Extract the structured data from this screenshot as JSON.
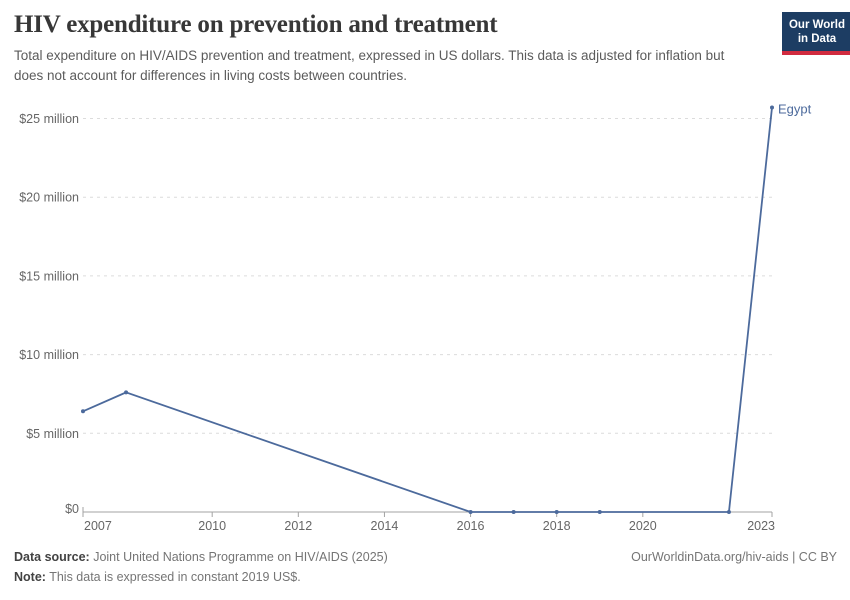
{
  "header": {
    "title": "HIV expenditure on prevention and treatment",
    "subtitle": "Total expenditure on HIV/AIDS prevention and treatment, expressed in US dollars. This data is adjusted for inflation but does not account for differences in living costs between countries.",
    "logo": {
      "line1": "Our World",
      "line2": "in Data",
      "bg_color": "#1d3d63",
      "bar_color": "#d12b3f"
    }
  },
  "chart_data": {
    "type": "line",
    "title": "HIV expenditure on prevention and treatment",
    "y_unit": "million US$ (constant 2019 US$)",
    "xlim": [
      2007,
      2023
    ],
    "ylim": [
      0,
      25
    ],
    "grid": true,
    "x_ticks": [
      2007,
      2010,
      2012,
      2014,
      2016,
      2018,
      2020,
      2023
    ],
    "y_ticks": [
      {
        "value": 0,
        "label": "$0"
      },
      {
        "value": 5,
        "label": "$5 million"
      },
      {
        "value": 10,
        "label": "$10 million"
      },
      {
        "value": 15,
        "label": "$15 million"
      },
      {
        "value": 20,
        "label": "$20 million"
      },
      {
        "value": 25,
        "label": "$25 million"
      }
    ],
    "series": [
      {
        "name": "Egypt",
        "color": "#4c6a9c",
        "points": [
          [
            2007,
            6.4
          ],
          [
            2008,
            7.6
          ],
          [
            2016,
            0
          ],
          [
            2017,
            0
          ],
          [
            2018,
            0
          ],
          [
            2019,
            0
          ],
          [
            2022,
            0
          ],
          [
            2023,
            25.7
          ]
        ]
      }
    ]
  },
  "footer": {
    "data_source_label": "Data source:",
    "data_source_text": " Joint United Nations Programme on HIV/AIDS (2025)",
    "note_label": "Note:",
    "note_text": " This data is expressed in constant 2019 US$.",
    "attribution": "OurWorldinData.org/hiv-aids | CC BY"
  }
}
